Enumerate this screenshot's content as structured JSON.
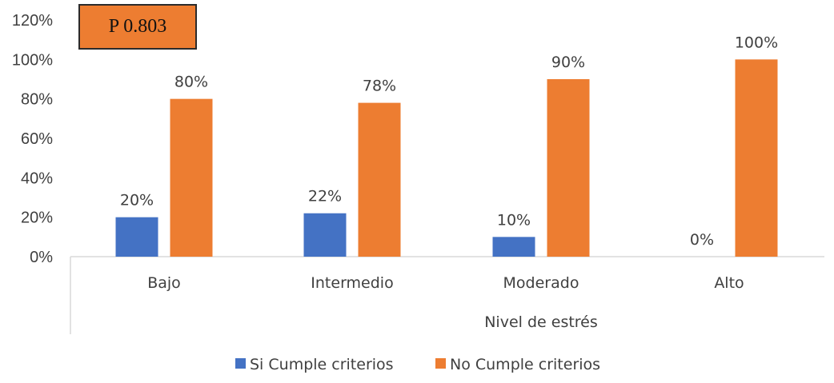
{
  "annotation": {
    "text": "P 0.803"
  },
  "colors": {
    "si": "#4472c4",
    "no": "#ed7d31",
    "axis": "#d9d9d9",
    "text": "#404040"
  },
  "chart_data": {
    "type": "bar",
    "title": "",
    "xlabel": "Nivel de estrés",
    "ylabel": "",
    "ylim": [
      0,
      120
    ],
    "yticks": [
      "0%",
      "20%",
      "40%",
      "60%",
      "80%",
      "100%",
      "120%"
    ],
    "categories": [
      "Bajo",
      "Intermedio",
      "Moderado",
      "Alto"
    ],
    "series": [
      {
        "name": "Si Cumple criterios",
        "values": [
          20,
          22,
          10,
          0
        ],
        "labels": [
          "20%",
          "22%",
          "10%",
          "0%"
        ]
      },
      {
        "name": "No Cumple criterios",
        "values": [
          80,
          78,
          90,
          100
        ],
        "labels": [
          "80%",
          "78%",
          "90%",
          "100%"
        ]
      }
    ],
    "grid": false,
    "legend": "bottom"
  }
}
